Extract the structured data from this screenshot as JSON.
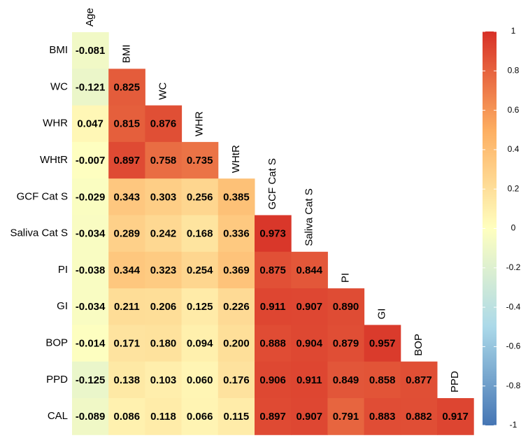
{
  "chart_data": {
    "type": "heatmap",
    "x_categories": [
      "Age",
      "BMI",
      "WC",
      "WHR",
      "WHtR",
      "GCF Cat S",
      "Saliva Cat S",
      "PI",
      "GI",
      "BOP",
      "PPD"
    ],
    "y_categories": [
      "BMI",
      "WC",
      "WHR",
      "WHtR",
      "GCF Cat S",
      "Saliva Cat S",
      "PI",
      "GI",
      "BOP",
      "PPD",
      "CAL"
    ],
    "values": [
      [
        -0.081
      ],
      [
        -0.121,
        0.825
      ],
      [
        0.047,
        0.815,
        0.876
      ],
      [
        -0.007,
        0.897,
        0.758,
        0.735
      ],
      [
        -0.029,
        0.343,
        0.303,
        0.256,
        0.385
      ],
      [
        -0.034,
        0.289,
        0.242,
        0.168,
        0.336,
        0.973
      ],
      [
        -0.038,
        0.344,
        0.323,
        0.254,
        0.369,
        0.875,
        0.844
      ],
      [
        -0.034,
        0.211,
        0.206,
        0.125,
        0.226,
        0.911,
        0.907,
        0.89
      ],
      [
        -0.014,
        0.171,
        0.18,
        0.094,
        0.2,
        0.888,
        0.904,
        0.879,
        0.957
      ],
      [
        -0.125,
        0.138,
        0.103,
        0.06,
        0.176,
        0.906,
        0.911,
        0.849,
        0.858,
        0.877
      ],
      [
        -0.089,
        0.086,
        0.118,
        0.066,
        0.115,
        0.897,
        0.907,
        0.791,
        0.883,
        0.882,
        0.917
      ]
    ],
    "value_labels": [
      [
        "-0.081"
      ],
      [
        "-0.121",
        "0.825"
      ],
      [
        "0.047",
        "0.815",
        "0.876"
      ],
      [
        "-0.007",
        "0.897",
        "0.758",
        "0.735"
      ],
      [
        "-0.029",
        "0.343",
        "0.303",
        "0.256",
        "0.385"
      ],
      [
        "-0.034",
        "0.289",
        "0.242",
        "0.168",
        "0.336",
        "0.973"
      ],
      [
        "-0.038",
        "0.344",
        "0.323",
        "0.254",
        "0.369",
        "0.875",
        "0.844"
      ],
      [
        "-0.034",
        "0.211",
        "0.206",
        "0.125",
        "0.226",
        "0.911",
        "0.907",
        "0.890"
      ],
      [
        "-0.014",
        "0.171",
        "0.180",
        "0.094",
        "0.200",
        "0.888",
        "0.904",
        "0.879",
        "0.957"
      ],
      [
        "-0.125",
        "0.138",
        "0.103",
        "0.060",
        "0.176",
        "0.906",
        "0.911",
        "0.849",
        "0.858",
        "0.877"
      ],
      [
        "-0.089",
        "0.086",
        "0.118",
        "0.066",
        "0.115",
        "0.897",
        "0.907",
        "0.791",
        "0.883",
        "0.882",
        "0.917"
      ]
    ],
    "zlim": [
      -1,
      1
    ],
    "zticks": [
      1,
      0.8,
      0.6,
      0.4,
      0.2,
      0,
      -0.2,
      -0.4,
      -0.6,
      -0.8,
      -1
    ],
    "colors": [
      "#4575b4",
      "#abd9e9",
      "#ffffbf",
      "#fdae61",
      "#d73027"
    ]
  }
}
